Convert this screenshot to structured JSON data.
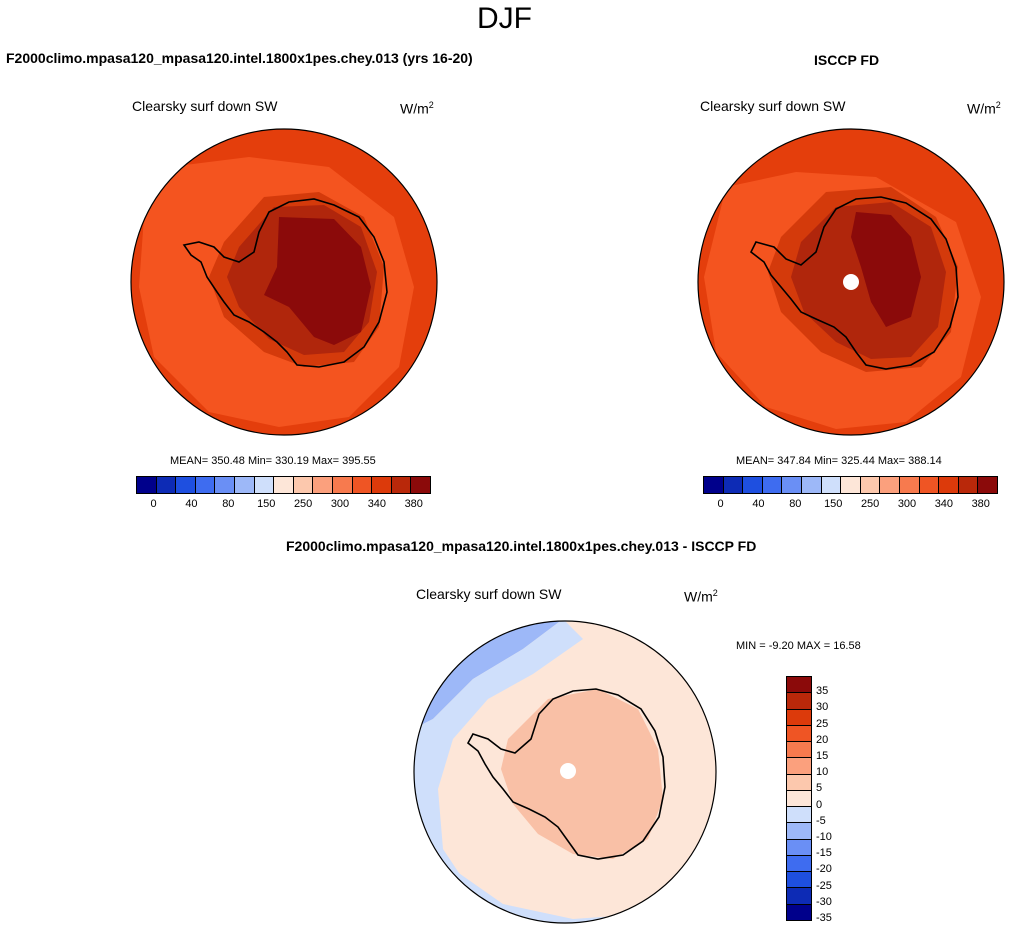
{
  "season": "DJF",
  "panel_left": {
    "title": "F2000climo.mpasa120_mpasa120.intel.1800x1pes.chey.013 (yrs 16-20)",
    "variable": "Clearsky surf down SW",
    "units": "W/m",
    "units_exp": "2",
    "stats": "MEAN= 350.48  Min= 330.19  Max= 395.55"
  },
  "panel_right": {
    "title": "ISCCP FD",
    "variable": "Clearsky surf down SW",
    "units": "W/m",
    "units_exp": "2",
    "stats": "MEAN= 347.84  Min= 325.44  Max= 388.14"
  },
  "panel_diff": {
    "title": "F2000climo.mpasa120_mpasa120.intel.1800x1pes.chey.013 - ISCCP FD",
    "variable": "Clearsky surf down SW",
    "units": "W/m",
    "units_exp": "2",
    "stats": "MIN =  -9.20 MAX =  16.58"
  },
  "abs_colorbar": {
    "colors": [
      "#00008b",
      "#0d2bb5",
      "#1e4fe0",
      "#3e6cf0",
      "#6a8ff5",
      "#9db8f8",
      "#cfdffb",
      "#fde6d8",
      "#fcc8ad",
      "#fba07d",
      "#f77a4e",
      "#ef5524",
      "#dc3a0b",
      "#b9280a",
      "#8b0a0a"
    ],
    "ticks": [
      "0",
      "40",
      "80",
      "150",
      "250",
      "300",
      "340",
      "380"
    ]
  },
  "diff_colorbar": {
    "colors": [
      "#8b0a0a",
      "#b9280a",
      "#dc3a0b",
      "#ef5524",
      "#f77a4e",
      "#fba07d",
      "#fcc8ad",
      "#fde6d8",
      "#cfdffb",
      "#9db8f8",
      "#6a8ff5",
      "#3e6cf0",
      "#1e4fe0",
      "#0d2bb5",
      "#00008b"
    ],
    "ticks": [
      "35",
      "30",
      "25",
      "20",
      "15",
      "10",
      "5",
      "0",
      "-5",
      "-10",
      "-15",
      "-20",
      "-25",
      "-30",
      "-35"
    ]
  },
  "map_colors": {
    "ocean_outer": "#e43e0c",
    "ocean_inner": "#f4541f",
    "coast_band": "#d43a0b",
    "plateau": "#b0260c",
    "interior": "#8b0a0a",
    "diff_bg": "#fde6d8",
    "diff_warm": "#f9c0a6",
    "diff_cool": "#cfdffb",
    "diff_blue": "#9db8f8",
    "missing": "#ffffff"
  }
}
